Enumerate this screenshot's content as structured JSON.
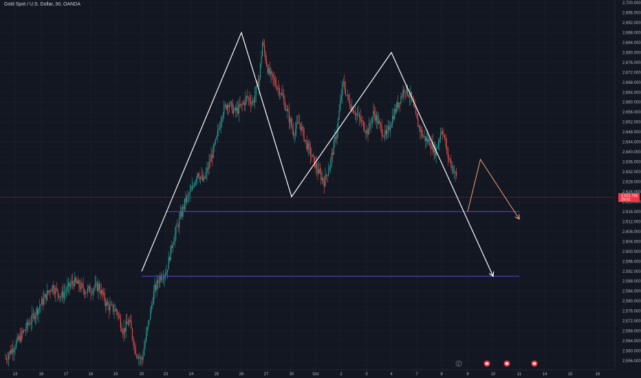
{
  "legend": {
    "symbol_text": "Gold Spot / U.S. Dollar, 30, OANDA"
  },
  "price_axis": {
    "labels": [
      "2,700.000",
      "2,696.000",
      "2,692.000",
      "2,688.000",
      "2,684.000",
      "2,680.000",
      "2,676.000",
      "2,672.000",
      "2,668.000",
      "2,664.000",
      "2,660.000",
      "2,656.000",
      "2,652.000",
      "2,648.000",
      "2,644.000",
      "2,640.000",
      "2,636.000",
      "2,632.000",
      "2,628.000",
      "2,624.000",
      "2,620.000",
      "2,616.000",
      "2,612.000",
      "2,608.000",
      "2,604.000",
      "2,600.000",
      "2,596.000",
      "2,592.000",
      "2,588.000",
      "2,584.000",
      "2,580.000",
      "2,576.000",
      "2,572.000",
      "2,568.000",
      "2,564.000",
      "2,560.000",
      "2,556.000"
    ]
  },
  "current_price": {
    "price": "2,621.765",
    "countdown": "29:01",
    "color": "#f23645"
  },
  "time_axis": {
    "labels": [
      "13",
      "16",
      "17",
      "18",
      "19",
      "20",
      "23",
      "24",
      "25",
      "26",
      "27",
      "30",
      "Oct",
      "2",
      "3",
      "4",
      "7",
      "8",
      "9",
      "10",
      "11",
      "14",
      "15",
      "16"
    ]
  },
  "colors": {
    "background": "#131722",
    "up_candle": "#26a69a",
    "down_candle": "#ef5350",
    "pattern_line": "#ffffff",
    "projection_line": "#f7a27c",
    "support_line": "#5b4bd6",
    "grid": "#1e222d"
  },
  "icons": {
    "event_markers": [
      "lightning-event-icon",
      "economic-event-icon",
      "economic-event-icon",
      "economic-event-icon"
    ]
  },
  "chart_data": {
    "type": "candlestick",
    "title": "Gold Spot / U.S. Dollar, 30, OANDA",
    "ylim": [
      2554,
      2702
    ],
    "x_ticks": [
      "13",
      "16",
      "17",
      "18",
      "19",
      "20",
      "23",
      "24",
      "25",
      "26",
      "27",
      "30",
      "Oct",
      "2",
      "3",
      "4",
      "7",
      "8",
      "9",
      "10",
      "11",
      "14",
      "15",
      "16"
    ],
    "price_path": [
      [
        0,
        2557
      ],
      [
        4,
        2564
      ],
      [
        8,
        2572
      ],
      [
        12,
        2580
      ],
      [
        15,
        2586
      ],
      [
        18,
        2582
      ],
      [
        22,
        2588
      ],
      [
        26,
        2584
      ],
      [
        30,
        2586
      ],
      [
        33,
        2578
      ],
      [
        36,
        2576
      ],
      [
        38,
        2568
      ],
      [
        40,
        2572
      ],
      [
        42,
        2560
      ],
      [
        44,
        2556
      ],
      [
        46,
        2570
      ],
      [
        48,
        2584
      ],
      [
        50,
        2590
      ],
      [
        52,
        2592
      ],
      [
        54,
        2604
      ],
      [
        56,
        2612
      ],
      [
        58,
        2620
      ],
      [
        60,
        2624
      ],
      [
        62,
        2632
      ],
      [
        64,
        2628
      ],
      [
        66,
        2636
      ],
      [
        68,
        2644
      ],
      [
        70,
        2656
      ],
      [
        72,
        2660
      ],
      [
        74,
        2656
      ],
      [
        76,
        2658
      ],
      [
        78,
        2662
      ],
      [
        80,
        2660
      ],
      [
        82,
        2670
      ],
      [
        83,
        2684
      ],
      [
        85,
        2672
      ],
      [
        87,
        2668
      ],
      [
        89,
        2664
      ],
      [
        91,
        2656
      ],
      [
        93,
        2648
      ],
      [
        95,
        2652
      ],
      [
        97,
        2644
      ],
      [
        99,
        2638
      ],
      [
        101,
        2632
      ],
      [
        103,
        2628
      ],
      [
        105,
        2636
      ],
      [
        107,
        2648
      ],
      [
        109,
        2668
      ],
      [
        111,
        2660
      ],
      [
        113,
        2656
      ],
      [
        115,
        2652
      ],
      [
        117,
        2648
      ],
      [
        119,
        2656
      ],
      [
        121,
        2650
      ],
      [
        123,
        2646
      ],
      [
        125,
        2654
      ],
      [
        127,
        2660
      ],
      [
        129,
        2666
      ],
      [
        131,
        2662
      ],
      [
        133,
        2652
      ],
      [
        135,
        2646
      ],
      [
        137,
        2644
      ],
      [
        139,
        2640
      ],
      [
        141,
        2650
      ],
      [
        143,
        2638
      ],
      [
        145,
        2632
      ],
      [
        146,
        2629
      ]
    ],
    "pattern_line": {
      "name": "double top (M) pattern",
      "points": [
        [
          "20",
          2592
        ],
        [
          "26",
          2688
        ],
        [
          "30",
          2622
        ],
        [
          "4",
          2680
        ],
        [
          "10",
          2590
        ]
      ]
    },
    "projection_path": {
      "points": [
        [
          "9",
          2616
        ],
        [
          "9.5",
          2637
        ],
        [
          "11",
          2613
        ]
      ]
    },
    "support_levels": [
      {
        "price": 2616,
        "from": "23",
        "to": "11"
      },
      {
        "price": 2590,
        "from": "20",
        "to": "11"
      }
    ],
    "current_price_line": 2621.765
  }
}
